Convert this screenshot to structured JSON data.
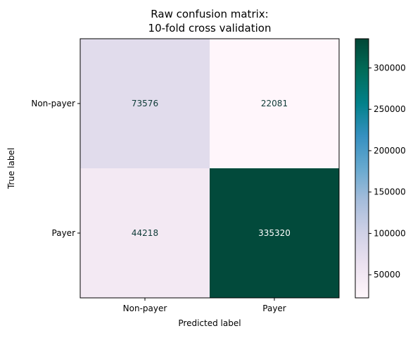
{
  "chart_data": {
    "type": "heatmap",
    "title": [
      "Raw confusion matrix:",
      "10-fold cross validation"
    ],
    "xlabel": "Predicted label",
    "ylabel": "True label",
    "x_categories": [
      "Non-payer",
      "Payer"
    ],
    "y_categories": [
      "Non-payer",
      "Payer"
    ],
    "values": [
      [
        73576,
        22081
      ],
      [
        44218,
        335320
      ]
    ],
    "colormap": "PuBuGn",
    "colorbar": {
      "range": [
        22081,
        335320
      ],
      "ticks": [
        50000,
        100000,
        150000,
        200000,
        250000,
        300000
      ]
    },
    "cell_colors": [
      [
        "#e1dcec",
        "#fff6fb"
      ],
      [
        "#f3e9f3",
        "#024a3b"
      ]
    ],
    "text_colors": {
      "dark": "#0e3b37",
      "light": "#ffffff"
    },
    "colorbar_stops": [
      {
        "offset": 0.0,
        "color": "#fff7fb"
      },
      {
        "offset": 0.125,
        "color": "#ece2f0"
      },
      {
        "offset": 0.25,
        "color": "#d0d1e6"
      },
      {
        "offset": 0.375,
        "color": "#a6bddb"
      },
      {
        "offset": 0.5,
        "color": "#67a9cf"
      },
      {
        "offset": 0.625,
        "color": "#3690c0"
      },
      {
        "offset": 0.75,
        "color": "#02818a"
      },
      {
        "offset": 0.875,
        "color": "#016c59"
      },
      {
        "offset": 1.0,
        "color": "#014636"
      }
    ]
  }
}
